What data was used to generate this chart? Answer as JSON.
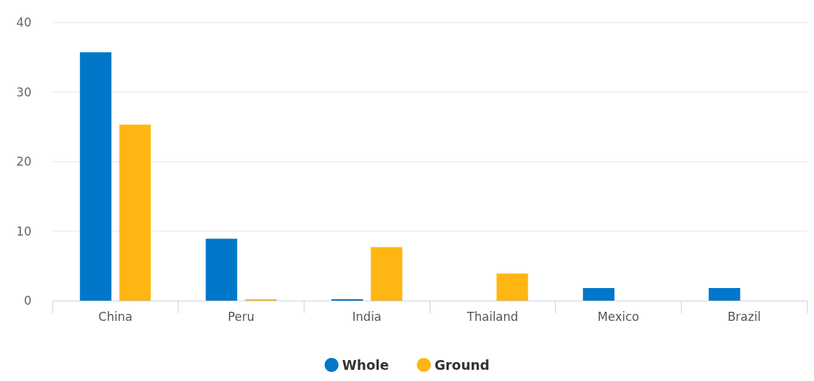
{
  "chart_data": {
    "type": "bar",
    "categories": [
      "China",
      "Peru",
      "India",
      "Thailand",
      "Mexico",
      "Brazil"
    ],
    "series": [
      {
        "name": "Whole",
        "color": "#0077c8",
        "values": [
          35.7,
          8.9,
          0.2,
          0,
          1.8,
          1.8
        ]
      },
      {
        "name": "Ground",
        "color": "#ffb612",
        "values": [
          25.3,
          0.2,
          7.7,
          3.9,
          0,
          0
        ]
      }
    ],
    "ylim": [
      0,
      40
    ],
    "yticks": [
      0,
      10,
      20,
      30,
      40
    ],
    "grid": "y",
    "legend": "bottom"
  }
}
